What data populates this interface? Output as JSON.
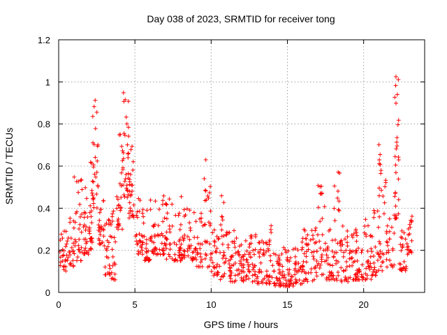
{
  "chart_data": {
    "type": "scatter",
    "title": "Day 038 of 2023, SRMTID for receiver tong",
    "xlabel": "GPS time / hours",
    "ylabel": "SRMTID / TECUs",
    "xlim": [
      0,
      24
    ],
    "ylim": [
      0,
      1.2
    ],
    "xticks": [
      0,
      5,
      10,
      15,
      20
    ],
    "xtick_labels": [
      "0",
      "5",
      "10",
      "15",
      "20"
    ],
    "yticks": [
      0,
      0.2,
      0.4,
      0.6,
      0.8,
      1,
      1.2
    ],
    "ytick_labels": [
      "0",
      "0.2",
      "0.4",
      "0.6",
      "0.8",
      "1",
      "1.2"
    ],
    "grid": true,
    "marker": "+",
    "color": "#ff0000",
    "envelope_note": "Approximate scatter envelope: [hour, low, high, count] per interval",
    "envelope": [
      [
        0.0,
        0.1,
        0.3,
        22
      ],
      [
        0.5,
        0.12,
        0.4,
        24
      ],
      [
        1.0,
        0.15,
        0.55,
        28
      ],
      [
        1.5,
        0.18,
        0.5,
        26
      ],
      [
        2.0,
        0.2,
        0.62,
        26
      ],
      [
        2.2,
        0.4,
        0.94,
        28
      ],
      [
        2.6,
        0.22,
        0.45,
        24
      ],
      [
        3.0,
        0.08,
        0.35,
        22
      ],
      [
        3.4,
        0.06,
        0.4,
        20
      ],
      [
        3.8,
        0.3,
        0.75,
        26
      ],
      [
        4.2,
        0.45,
        0.95,
        32
      ],
      [
        4.6,
        0.35,
        0.7,
        26
      ],
      [
        5.0,
        0.18,
        0.45,
        26
      ],
      [
        5.5,
        0.15,
        0.4,
        26
      ],
      [
        6.0,
        0.18,
        0.45,
        26
      ],
      [
        6.5,
        0.18,
        0.5,
        26
      ],
      [
        7.0,
        0.15,
        0.45,
        24
      ],
      [
        7.5,
        0.15,
        0.38,
        24
      ],
      [
        8.0,
        0.15,
        0.48,
        26
      ],
      [
        8.5,
        0.15,
        0.4,
        24
      ],
      [
        9.0,
        0.12,
        0.4,
        24
      ],
      [
        9.5,
        0.12,
        0.63,
        28
      ],
      [
        10.0,
        0.08,
        0.32,
        24
      ],
      [
        10.5,
        0.06,
        0.5,
        26
      ],
      [
        11.0,
        0.05,
        0.3,
        26
      ],
      [
        11.5,
        0.05,
        0.28,
        26
      ],
      [
        12.0,
        0.05,
        0.25,
        26
      ],
      [
        12.5,
        0.05,
        0.28,
        26
      ],
      [
        13.0,
        0.04,
        0.25,
        26
      ],
      [
        13.5,
        0.04,
        0.32,
        26
      ],
      [
        14.0,
        0.03,
        0.22,
        26
      ],
      [
        14.5,
        0.03,
        0.22,
        26
      ],
      [
        15.0,
        0.03,
        0.22,
        26
      ],
      [
        15.5,
        0.04,
        0.25,
        26
      ],
      [
        16.0,
        0.05,
        0.3,
        26
      ],
      [
        16.5,
        0.05,
        0.32,
        26
      ],
      [
        17.0,
        0.06,
        0.52,
        26
      ],
      [
        17.5,
        0.06,
        0.3,
        26
      ],
      [
        18.0,
        0.05,
        0.59,
        28
      ],
      [
        18.5,
        0.05,
        0.32,
        26
      ],
      [
        19.0,
        0.06,
        0.3,
        26
      ],
      [
        19.5,
        0.06,
        0.3,
        26
      ],
      [
        20.0,
        0.06,
        0.35,
        26
      ],
      [
        20.5,
        0.08,
        0.42,
        26
      ],
      [
        21.0,
        0.1,
        0.73,
        28
      ],
      [
        21.5,
        0.12,
        0.4,
        24
      ],
      [
        22.0,
        0.35,
        1.04,
        30
      ],
      [
        22.3,
        0.1,
        0.3,
        24
      ],
      [
        22.8,
        0.18,
        0.38,
        20
      ]
    ]
  }
}
